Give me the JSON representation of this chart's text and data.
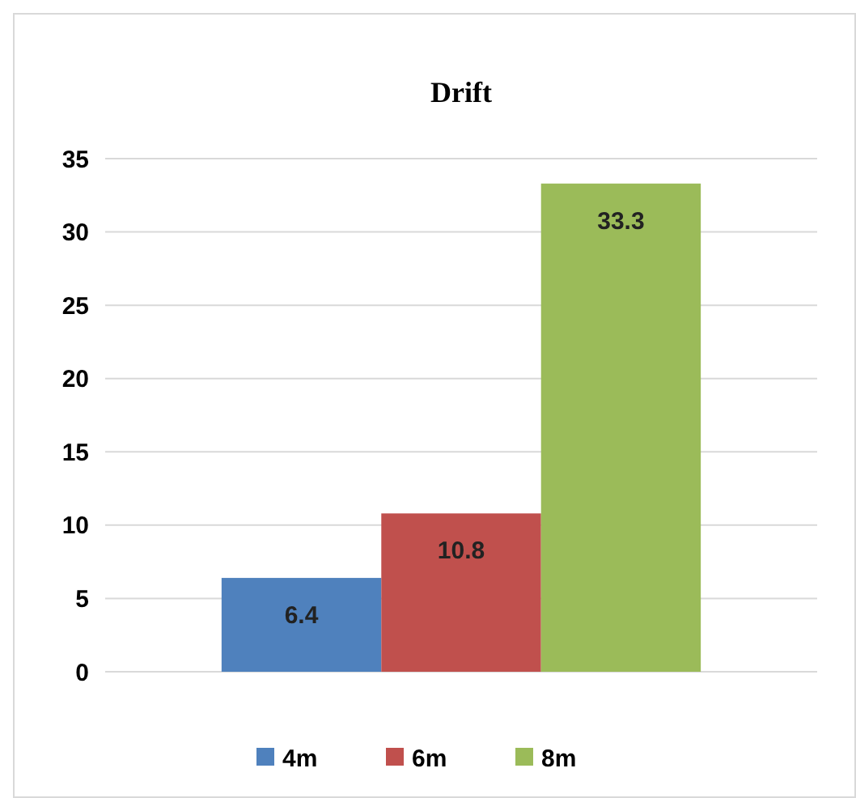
{
  "chart_data": {
    "type": "bar",
    "title": "Drift",
    "categories": [
      null
    ],
    "series": [
      {
        "name": "4m",
        "color": "#4f81bd",
        "values": [
          6.4
        ]
      },
      {
        "name": "6m",
        "color": "#c0504d",
        "values": [
          10.8
        ]
      },
      {
        "name": "8m",
        "color": "#9bbb59",
        "values": [
          33.3
        ]
      }
    ],
    "ylim": [
      0,
      35
    ],
    "yticks": [
      0,
      5,
      10,
      15,
      20,
      25,
      30,
      35
    ],
    "grid": "y",
    "legend": "bottom",
    "data_labels": true
  }
}
